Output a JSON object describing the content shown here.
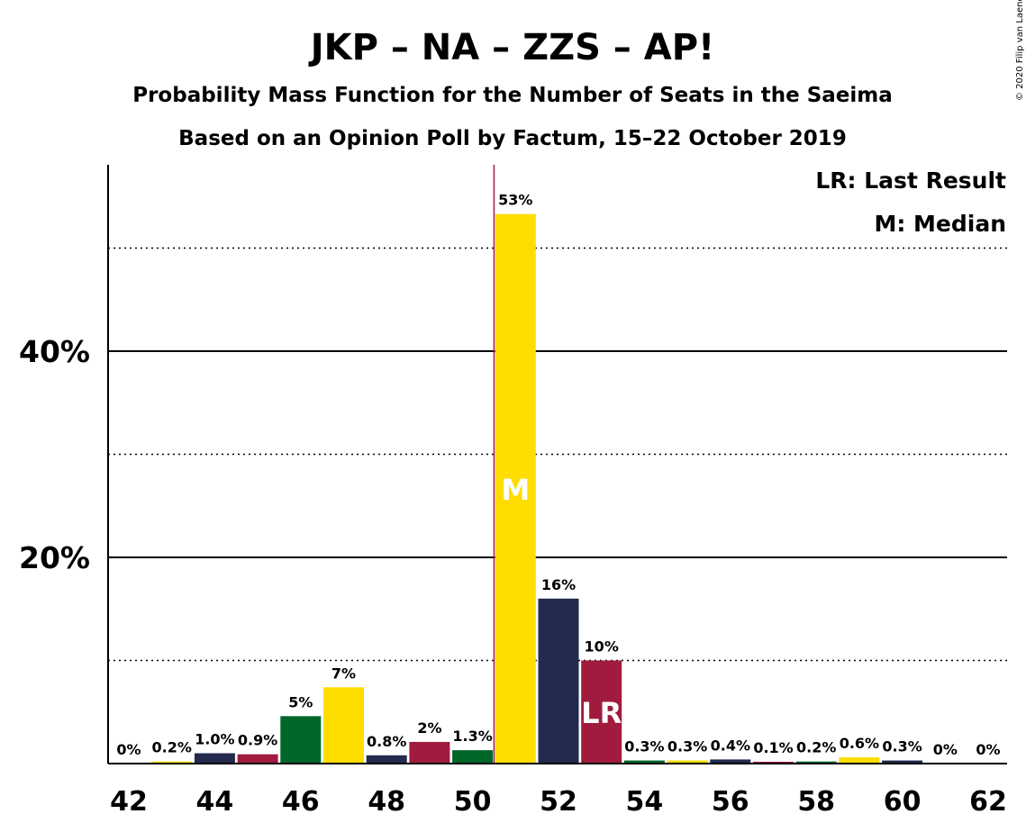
{
  "chart_data": {
    "type": "bar",
    "title": "JKP – NA – ZZS – AP!",
    "subtitle_lines": [
      "Probability Mass Function for the Number of Seats in the Saeima",
      "Based on an Opinion Poll by Factum, 15–22 October 2019"
    ],
    "copyright": "© 2020 Filip van Laenen",
    "x": [
      42,
      43,
      44,
      45,
      46,
      47,
      48,
      49,
      50,
      51,
      52,
      53,
      54,
      55,
      56,
      57,
      58,
      59,
      60,
      61,
      62
    ],
    "values": [
      0,
      0.2,
      1.0,
      0.9,
      4.6,
      7.4,
      0.8,
      2.1,
      1.3,
      53.3,
      16.0,
      10.0,
      0.3,
      0.3,
      0.4,
      0.1,
      0.2,
      0.6,
      0.3,
      0,
      0
    ],
    "value_labels": [
      "0%",
      "0.2%",
      "1.0%",
      "0.9%",
      "5%",
      "7%",
      "0.8%",
      "2%",
      "1.3%",
      "53%",
      "16%",
      "10%",
      "0.3%",
      "0.3%",
      "0.4%",
      "0.1%",
      "0.2%",
      "0.6%",
      "0.3%",
      "0%",
      "0%"
    ],
    "bar_colors": [
      "#232A4E",
      "#FFDD00",
      "#232A4E",
      "#A01B3E",
      "#00662A",
      "#FFDD00",
      "#232A4E",
      "#A01B3E",
      "#00662A",
      "#FFDD00",
      "#232A4E",
      "#A01B3E",
      "#00662A",
      "#FFDD00",
      "#232A4E",
      "#A01B3E",
      "#00662A",
      "#FFDD00",
      "#232A4E",
      "#A01B3E",
      "#00662A"
    ],
    "x_tick_labels": [
      "42",
      "44",
      "46",
      "48",
      "50",
      "52",
      "54",
      "56",
      "58",
      "60",
      "62"
    ],
    "y_ticks_major": [
      20,
      40
    ],
    "y_tick_labels": [
      "20%",
      "40%"
    ],
    "y_ticks_minor": [
      10,
      30,
      50
    ],
    "ylim": [
      0,
      58
    ],
    "median_seat": 51,
    "median_marker": "M",
    "last_result_seat": 53,
    "last_result_marker": "LR",
    "majority_line_x": 50.5,
    "majority_line_color": "#A01B3E",
    "legend": [
      "LR: Last Result",
      "M: Median"
    ],
    "legend_position": "top-right"
  }
}
